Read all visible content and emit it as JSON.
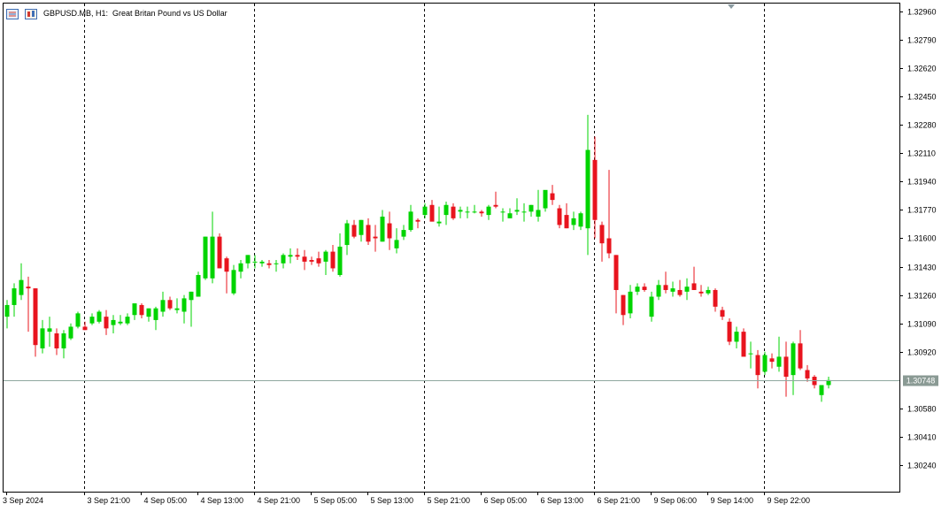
{
  "header": {
    "symbol_label": "GBPUSD.MB, H1:",
    "description": "Great Britan Pound vs US Dollar",
    "icons": [
      "chart-window-icon",
      "trading-panel-icon"
    ]
  },
  "colors": {
    "bull": "#00d400",
    "bear": "#e8141e",
    "grid": "#000000",
    "price_line": "#8fa8a0",
    "price_label_bg": "#8a9a94",
    "frame": "#000000",
    "background": "#ffffff"
  },
  "chart_data": {
    "type": "candlestick",
    "title": "GBPUSD.MB, H1:  Great Britan Pound vs US Dollar",
    "ylim": [
      1.3019,
      1.3302
    ],
    "y_ticks": [
      "1.32960",
      "1.32790",
      "1.32620",
      "1.32450",
      "1.32280",
      "1.32110",
      "1.31940",
      "1.31770",
      "1.31600",
      "1.31430",
      "1.31260",
      "1.31090",
      "1.30920",
      "1.30580",
      "1.30410",
      "1.30240"
    ],
    "current_price": "1.30748",
    "x_labels": [
      "3 Sep 2024",
      "3 Sep 21:00",
      "4 Sep 05:00",
      "4 Sep 13:00",
      "4 Sep 21:00",
      "5 Sep 05:00",
      "5 Sep 13:00",
      "5 Sep 21:00",
      "6 Sep 05:00",
      "6 Sep 13:00",
      "6 Sep 21:00",
      "9 Sep 06:00",
      "9 Sep 14:00",
      "9 Sep 22:00"
    ],
    "x_label_bar_index": [
      0,
      11,
      19,
      27,
      35,
      43,
      51,
      59,
      67,
      75,
      83,
      91,
      99,
      107
    ],
    "day_separator_bar_index": [
      11,
      35,
      59,
      83,
      107
    ],
    "candles": [
      [
        1.3113,
        1.3123,
        1.3106,
        1.312
      ],
      [
        1.312,
        1.3133,
        1.3113,
        1.313
      ],
      [
        1.3126,
        1.3145,
        1.3123,
        1.3135
      ],
      [
        1.3131,
        1.3137,
        1.3104,
        1.313
      ],
      [
        1.313,
        1.313,
        1.3089,
        1.3096
      ],
      [
        1.3094,
        1.3111,
        1.3091,
        1.3106
      ],
      [
        1.3104,
        1.3113,
        1.3095,
        1.3106
      ],
      [
        1.3103,
        1.3106,
        1.309,
        1.3094
      ],
      [
        1.3094,
        1.3105,
        1.3088,
        1.3103
      ],
      [
        1.31,
        1.3109,
        1.3099,
        1.3107
      ],
      [
        1.3107,
        1.3116,
        1.3106,
        1.3115
      ],
      [
        1.3107,
        1.311,
        1.3105,
        1.3105
      ],
      [
        1.3109,
        1.3115,
        1.3108,
        1.3113
      ],
      [
        1.311,
        1.3117,
        1.3109,
        1.3116
      ],
      [
        1.3113,
        1.3117,
        1.3102,
        1.3106
      ],
      [
        1.3108,
        1.3114,
        1.3103,
        1.3111
      ],
      [
        1.3109,
        1.3114,
        1.3108,
        1.311
      ],
      [
        1.3109,
        1.3115,
        1.3108,
        1.3113
      ],
      [
        1.3114,
        1.312,
        1.3111,
        1.3121
      ],
      [
        1.312,
        1.3121,
        1.3112,
        1.3114
      ],
      [
        1.3113,
        1.3118,
        1.311,
        1.3118
      ],
      [
        1.3111,
        1.3119,
        1.3105,
        1.3118
      ],
      [
        1.3116,
        1.3128,
        1.3113,
        1.3123
      ],
      [
        1.3123,
        1.3125,
        1.3117,
        1.3118
      ],
      [
        1.3117,
        1.3124,
        1.3115,
        1.3118
      ],
      [
        1.3116,
        1.3126,
        1.3109,
        1.3124
      ],
      [
        1.3123,
        1.3128,
        1.3107,
        1.3128
      ],
      [
        1.3125,
        1.314,
        1.3125,
        1.3138
      ],
      [
        1.3136,
        1.3161,
        1.3135,
        1.3161
      ],
      [
        1.3136,
        1.3176,
        1.3133,
        1.3161
      ],
      [
        1.3161,
        1.3163,
        1.3142,
        1.3142
      ],
      [
        1.3148,
        1.3149,
        1.3127,
        1.314
      ],
      [
        1.3127,
        1.3144,
        1.3126,
        1.3141
      ],
      [
        1.314,
        1.3147,
        1.3136,
        1.3145
      ],
      [
        1.3145,
        1.315,
        1.3142,
        1.315
      ],
      [
        1.3146,
        1.315,
        1.3142,
        1.3146
      ],
      [
        1.3145,
        1.3147,
        1.3143,
        1.3146
      ],
      [
        1.3145,
        1.3147,
        1.3142,
        1.3144
      ],
      [
        1.3145,
        1.3147,
        1.314,
        1.3145
      ],
      [
        1.3145,
        1.3151,
        1.3142,
        1.315
      ],
      [
        1.3149,
        1.3154,
        1.3145,
        1.315
      ],
      [
        1.315,
        1.3154,
        1.3147,
        1.3149
      ],
      [
        1.3149,
        1.3153,
        1.3141,
        1.3146
      ],
      [
        1.3147,
        1.3149,
        1.3144,
        1.3146
      ],
      [
        1.3148,
        1.3152,
        1.3143,
        1.3145
      ],
      [
        1.3146,
        1.3153,
        1.3138,
        1.3152
      ],
      [
        1.3152,
        1.3156,
        1.314,
        1.3142
      ],
      [
        1.3138,
        1.3163,
        1.3137,
        1.3155
      ],
      [
        1.3156,
        1.3171,
        1.315,
        1.3169
      ],
      [
        1.3168,
        1.3171,
        1.316,
        1.3161
      ],
      [
        1.3162,
        1.3171,
        1.3158,
        1.3171
      ],
      [
        1.3168,
        1.3172,
        1.3156,
        1.3158
      ],
      [
        1.3161,
        1.3168,
        1.3152,
        1.316
      ],
      [
        1.3158,
        1.3177,
        1.3158,
        1.3173
      ],
      [
        1.3169,
        1.3176,
        1.3153,
        1.316
      ],
      [
        1.3154,
        1.3166,
        1.3151,
        1.3159
      ],
      [
        1.3161,
        1.3168,
        1.3159,
        1.3165
      ],
      [
        1.3165,
        1.318,
        1.3164,
        1.3176
      ],
      [
        1.3171,
        1.3172,
        1.3166,
        1.317
      ],
      [
        1.3174,
        1.3181,
        1.3172,
        1.3179
      ],
      [
        1.318,
        1.3183,
        1.3171,
        1.317
      ],
      [
        1.3169,
        1.3179,
        1.3167,
        1.317
      ],
      [
        1.3174,
        1.3182,
        1.3168,
        1.318
      ],
      [
        1.3179,
        1.3181,
        1.3171,
        1.3172
      ],
      [
        1.3176,
        1.3179,
        1.3172,
        1.3177
      ],
      [
        1.3176,
        1.3179,
        1.3172,
        1.3176
      ],
      [
        1.3176,
        1.318,
        1.3175,
        1.3176
      ],
      [
        1.3176,
        1.3177,
        1.3173,
        1.3175
      ],
      [
        1.3174,
        1.318,
        1.3171,
        1.3179
      ],
      [
        1.318,
        1.3188,
        1.3178,
        1.3179
      ],
      [
        1.3176,
        1.3178,
        1.317,
        1.3176
      ],
      [
        1.3172,
        1.3178,
        1.3173,
        1.3175
      ],
      [
        1.3176,
        1.3184,
        1.3174,
        1.3177
      ],
      [
        1.3176,
        1.3181,
        1.317,
        1.3176
      ],
      [
        1.3176,
        1.318,
        1.3173,
        1.318
      ],
      [
        1.3173,
        1.3189,
        1.317,
        1.3177
      ],
      [
        1.3178,
        1.3187,
        1.3176,
        1.3189
      ],
      [
        1.3187,
        1.3192,
        1.318,
        1.3183
      ],
      [
        1.3178,
        1.318,
        1.3166,
        1.3168
      ],
      [
        1.3174,
        1.3181,
        1.3166,
        1.3166
      ],
      [
        1.3168,
        1.3176,
        1.3165,
        1.3172
      ],
      [
        1.3167,
        1.3176,
        1.3165,
        1.3175
      ],
      [
        1.3166,
        1.3234,
        1.315,
        1.3213
      ],
      [
        1.3207,
        1.3221,
        1.316,
        1.3171
      ],
      [
        1.3168,
        1.317,
        1.3146,
        1.3157
      ],
      [
        1.316,
        1.3201,
        1.3148,
        1.3151
      ],
      [
        1.315,
        1.315,
        1.3115,
        1.3129
      ],
      [
        1.3126,
        1.3126,
        1.3108,
        1.3114
      ],
      [
        1.3115,
        1.3132,
        1.3112,
        1.3128
      ],
      [
        1.3128,
        1.3133,
        1.3126,
        1.3131
      ],
      [
        1.3131,
        1.3133,
        1.3128,
        1.3129
      ],
      [
        1.3113,
        1.3128,
        1.311,
        1.3125
      ],
      [
        1.3125,
        1.3135,
        1.3123,
        1.3132
      ],
      [
        1.3132,
        1.314,
        1.3127,
        1.3129
      ],
      [
        1.3128,
        1.3134,
        1.3125,
        1.313
      ],
      [
        1.3129,
        1.3135,
        1.3125,
        1.3126
      ],
      [
        1.3128,
        1.3136,
        1.3123,
        1.3131
      ],
      [
        1.3133,
        1.3143,
        1.3129,
        1.3129
      ],
      [
        1.3128,
        1.3132,
        1.3125,
        1.3127
      ],
      [
        1.3127,
        1.3131,
        1.3126,
        1.3129
      ],
      [
        1.3129,
        1.313,
        1.3116,
        1.3119
      ],
      [
        1.3117,
        1.3119,
        1.3111,
        1.3113
      ],
      [
        1.311,
        1.3112,
        1.3096,
        1.3098
      ],
      [
        1.3098,
        1.3107,
        1.3094,
        1.3104
      ],
      [
        1.3104,
        1.3106,
        1.309,
        1.3089
      ],
      [
        1.3091,
        1.3098,
        1.3082,
        1.3091
      ],
      [
        1.309,
        1.3093,
        1.307,
        1.3078
      ],
      [
        1.308,
        1.3092,
        1.3078,
        1.309
      ],
      [
        1.3088,
        1.3091,
        1.3082,
        1.3086
      ],
      [
        1.3083,
        1.3101,
        1.308,
        1.3089
      ],
      [
        1.3089,
        1.3098,
        1.3065,
        1.3077
      ],
      [
        1.3078,
        1.3098,
        1.3066,
        1.3097
      ],
      [
        1.3097,
        1.3105,
        1.3081,
        1.3082
      ],
      [
        1.3081,
        1.3084,
        1.3074,
        1.3076
      ],
      [
        1.3077,
        1.3078,
        1.307,
        1.3072
      ],
      [
        1.3066,
        1.3072,
        1.3062,
        1.3072
      ],
      [
        1.3072,
        1.3077,
        1.307,
        1.3075
      ]
    ]
  }
}
